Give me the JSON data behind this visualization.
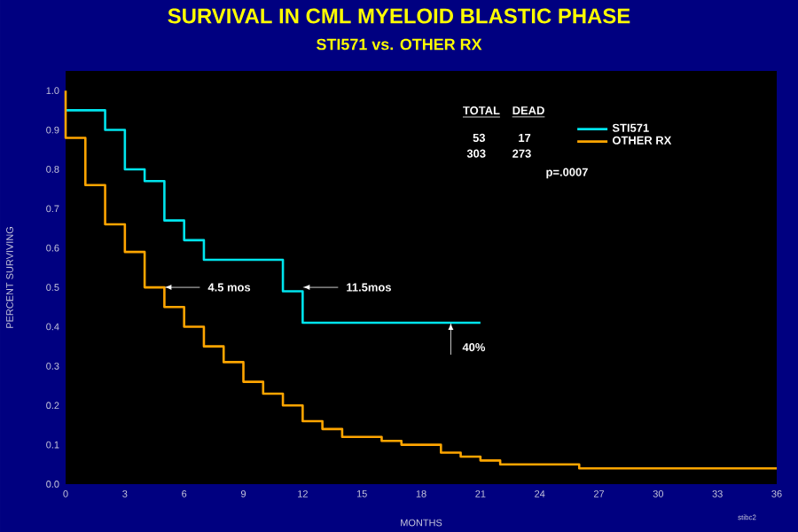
{
  "chart_data": {
    "type": "step",
    "title": "SURVIVAL IN CML MYELOID BLASTIC PHASE",
    "subtitle": "STI571 vs. OTHER RX",
    "xlabel": "MONTHS",
    "ylabel": "PERCENT SURVIVING",
    "series": [
      {
        "name": "STI571",
        "color": "#00e5ee",
        "x": [
          0,
          2,
          3,
          4,
          5,
          6,
          7,
          11,
          12,
          21
        ],
        "values": [
          0.95,
          0.9,
          0.8,
          0.77,
          0.67,
          0.62,
          0.57,
          0.49,
          0.41,
          0.41
        ]
      },
      {
        "name": "OTHER RX",
        "color": "#ffa500",
        "x": [
          0,
          0,
          1,
          2,
          3,
          4,
          5,
          6,
          7,
          8,
          9,
          10,
          11,
          12,
          13,
          14,
          16,
          17,
          19,
          20,
          21,
          22,
          26,
          36
        ],
        "values": [
          1.0,
          0.88,
          0.76,
          0.66,
          0.59,
          0.5,
          0.45,
          0.4,
          0.35,
          0.31,
          0.26,
          0.23,
          0.2,
          0.16,
          0.14,
          0.12,
          0.11,
          0.1,
          0.08,
          0.07,
          0.06,
          0.05,
          0.04,
          0.04
        ]
      }
    ],
    "xlim": [
      0,
      36
    ],
    "ylim": [
      0,
      1.05
    ],
    "xticks": [
      0,
      3,
      6,
      9,
      12,
      15,
      18,
      21,
      24,
      27,
      30,
      33,
      36
    ],
    "yticks": [
      {
        "value": 0,
        "label": "0.0"
      },
      {
        "value": 0.1,
        "label": "0.1"
      },
      {
        "value": 0.2,
        "label": "0.2"
      },
      {
        "value": 0.3,
        "label": "0.3"
      },
      {
        "value": 0.4,
        "label": "0.4"
      },
      {
        "value": 0.5,
        "label": "0.5"
      },
      {
        "value": 0.6,
        "label": "0.6"
      },
      {
        "value": 0.7,
        "label": "0.7"
      },
      {
        "value": 0.8,
        "label": "0.8"
      },
      {
        "value": 0.9,
        "label": "0.9"
      },
      {
        "value": 1.0,
        "label": "1.0"
      }
    ],
    "legend": "top right",
    "grid": false,
    "annotations": [
      "TOTAL",
      "DEAD",
      "53",
      "17",
      "303",
      "273",
      "p=.0007",
      "stibc2",
      {
        "text": "4.5 mos",
        "x": 5,
        "y": 0.5
      },
      {
        "text": "11.5mos",
        "x": 12,
        "y": 0.5
      },
      {
        "text": "40%",
        "x": 19.5,
        "y": 0.41
      }
    ]
  }
}
